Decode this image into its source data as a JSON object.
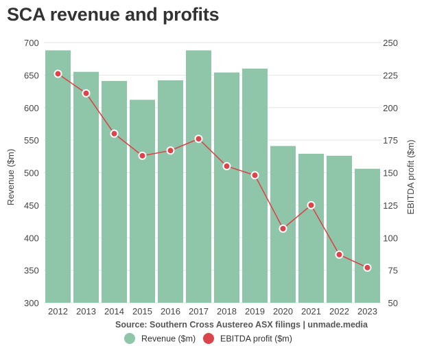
{
  "page": {
    "title": "SCA revenue and profits"
  },
  "chart_data": {
    "type": "bar",
    "title": "SCA revenue and profits",
    "categories": [
      "2012",
      "2013",
      "2014",
      "2015",
      "2016",
      "2017",
      "2018",
      "2019",
      "2020",
      "2021",
      "2022",
      "2023"
    ],
    "series": [
      {
        "name": "Revenue ($m)",
        "type": "bar",
        "axis": "left",
        "color": "#8fc5a8",
        "values": [
          688,
          655,
          641,
          612,
          642,
          688,
          654,
          660,
          541,
          529,
          526,
          506
        ]
      },
      {
        "name": "EBITDA profit ($m)",
        "type": "line",
        "axis": "right",
        "color": "#d9454a",
        "values": [
          226,
          211,
          180,
          163,
          167,
          176,
          155,
          148,
          107,
          125,
          87,
          77
        ]
      }
    ],
    "ylabel_left": "Revenue ($m)",
    "ylabel_right": "EBITDA profit ($m)",
    "ylim_left": [
      300,
      700
    ],
    "ylim_right": [
      50,
      250
    ],
    "yticks_left": [
      "300",
      "350",
      "400",
      "450",
      "500",
      "550",
      "600",
      "650",
      "700"
    ],
    "yticks_right": [
      "50",
      "75",
      "100",
      "125",
      "150",
      "175",
      "200",
      "225",
      "250"
    ],
    "grid": true,
    "legend_position": "bottom",
    "source": "Source: Southern Cross Austereo ASX filings | unmade.media"
  }
}
